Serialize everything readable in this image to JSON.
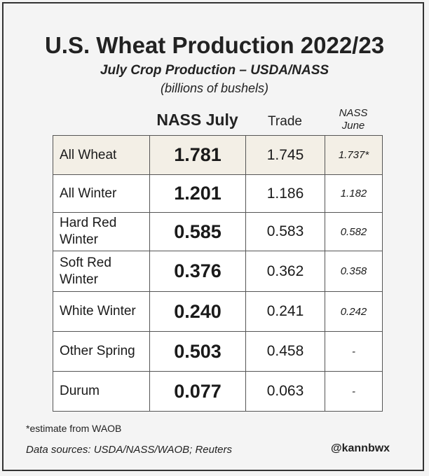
{
  "chart_data": {
    "type": "table",
    "title": "U.S. Wheat Production 2022/23",
    "subtitle": "July Crop Production – USDA/NASS",
    "units": "(billions of bushels)",
    "columns": {
      "nass_july": "NASS July",
      "trade": "Trade",
      "nass_june_line1": "NASS",
      "nass_june_line2": "June"
    },
    "highlight_color": "#f3efe6",
    "rows": [
      {
        "label_line1": "All Wheat",
        "label_line2": "",
        "nass_july": "1.781",
        "trade": "1.745",
        "nass_june": "1.737*"
      },
      {
        "label_line1": "All Winter",
        "label_line2": "",
        "nass_july": "1.201",
        "trade": "1.186",
        "nass_june": "1.182"
      },
      {
        "label_line1": "Hard Red",
        "label_line2": "Winter",
        "nass_july": "0.585",
        "trade": "0.583",
        "nass_june": "0.582"
      },
      {
        "label_line1": "Soft Red",
        "label_line2": "Winter",
        "nass_july": "0.376",
        "trade": "0.362",
        "nass_june": "0.358"
      },
      {
        "label_line1": "White Winter",
        "label_line2": "",
        "nass_july": "0.240",
        "trade": "0.241",
        "nass_june": "0.242"
      },
      {
        "label_line1": "Other Spring",
        "label_line2": "",
        "nass_july": "0.503",
        "trade": "0.458",
        "nass_june": "-"
      },
      {
        "label_line1": "Durum",
        "label_line2": "",
        "nass_july": "0.077",
        "trade": "0.063",
        "nass_june": "-"
      }
    ],
    "footnote": "*estimate from WAOB",
    "sources": "Data sources: USDA/NASS/WAOB; Reuters",
    "handle": "@kannbwx"
  }
}
